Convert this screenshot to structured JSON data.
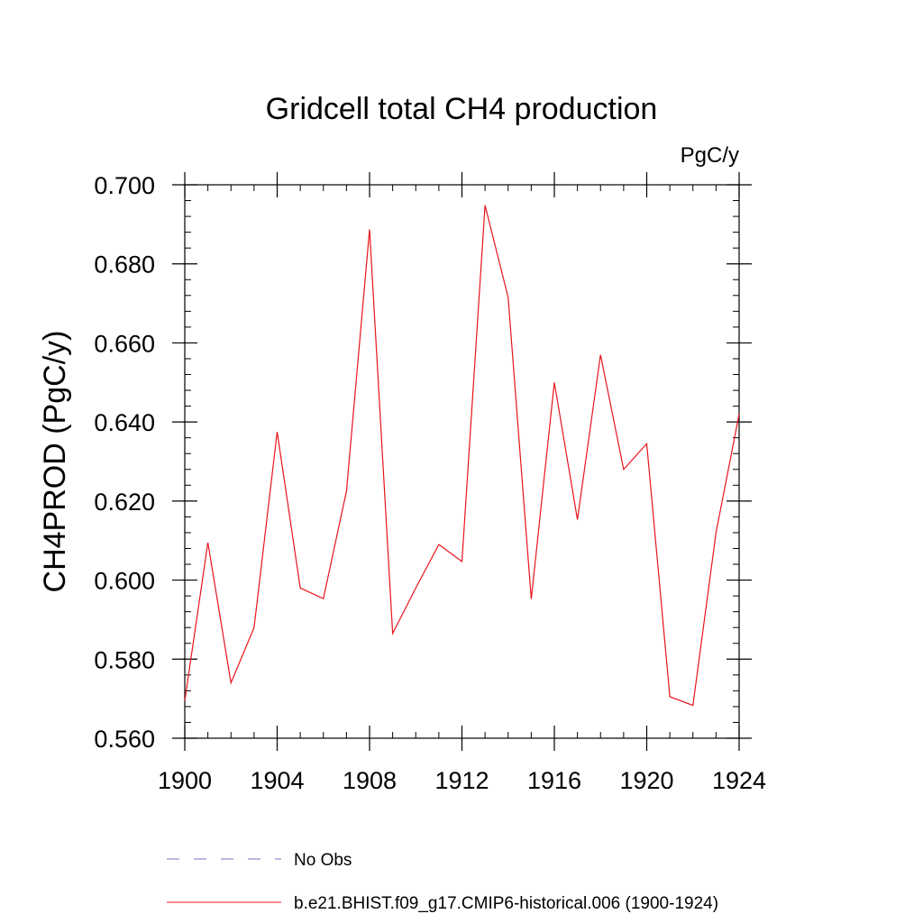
{
  "chart_data": {
    "type": "line",
    "title": "Gridcell total CH4 production",
    "units_label": "PgC/y",
    "xlabel": "",
    "ylabel": "CH4PROD  (PgC/y)",
    "xlim": [
      1900,
      1924
    ],
    "ylim": [
      0.56,
      0.7
    ],
    "x_ticks": [
      1900,
      1904,
      1908,
      1912,
      1916,
      1920,
      1924
    ],
    "x_tick_labels": [
      "1900",
      "1904",
      "1908",
      "1912",
      "1916",
      "1920",
      "1924"
    ],
    "x_minor_step": 1,
    "y_ticks": [
      0.56,
      0.58,
      0.6,
      0.62,
      0.64,
      0.66,
      0.68,
      0.7
    ],
    "y_tick_labels": [
      "0.560",
      "0.580",
      "0.600",
      "0.620",
      "0.640",
      "0.660",
      "0.680",
      "0.700"
    ],
    "y_minor_step": 0.004,
    "grid": false,
    "legend_position": "bottom",
    "series": [
      {
        "name": "b.e21.BHIST.f09_g17.CMIP6-historical.006 (1900-1924)",
        "color": "#e8141a",
        "dash": "solid",
        "x": [
          1900,
          1901,
          1902,
          1903,
          1904,
          1905,
          1906,
          1907,
          1908,
          1909,
          1910,
          1911,
          1912,
          1913,
          1914,
          1915,
          1916,
          1917,
          1918,
          1919,
          1920,
          1921,
          1922,
          1923,
          1924
        ],
        "values": [
          0.5695,
          0.6095,
          0.574,
          0.588,
          0.6375,
          0.598,
          0.5953,
          0.6225,
          0.6887,
          0.5865,
          0.598,
          0.609,
          0.6047,
          0.6948,
          0.6715,
          0.5952,
          0.65,
          0.6153,
          0.657,
          0.628,
          0.6345,
          0.5705,
          0.5683,
          0.612,
          0.642
        ]
      }
    ],
    "legend": [
      {
        "label": "No Obs",
        "color": "#7b6fc4",
        "dash": "dashed"
      },
      {
        "label": "b.e21.BHIST.f09_g17.CMIP6-historical.006 (1900-1924)",
        "color": "#e8141a",
        "dash": "solid"
      }
    ]
  }
}
